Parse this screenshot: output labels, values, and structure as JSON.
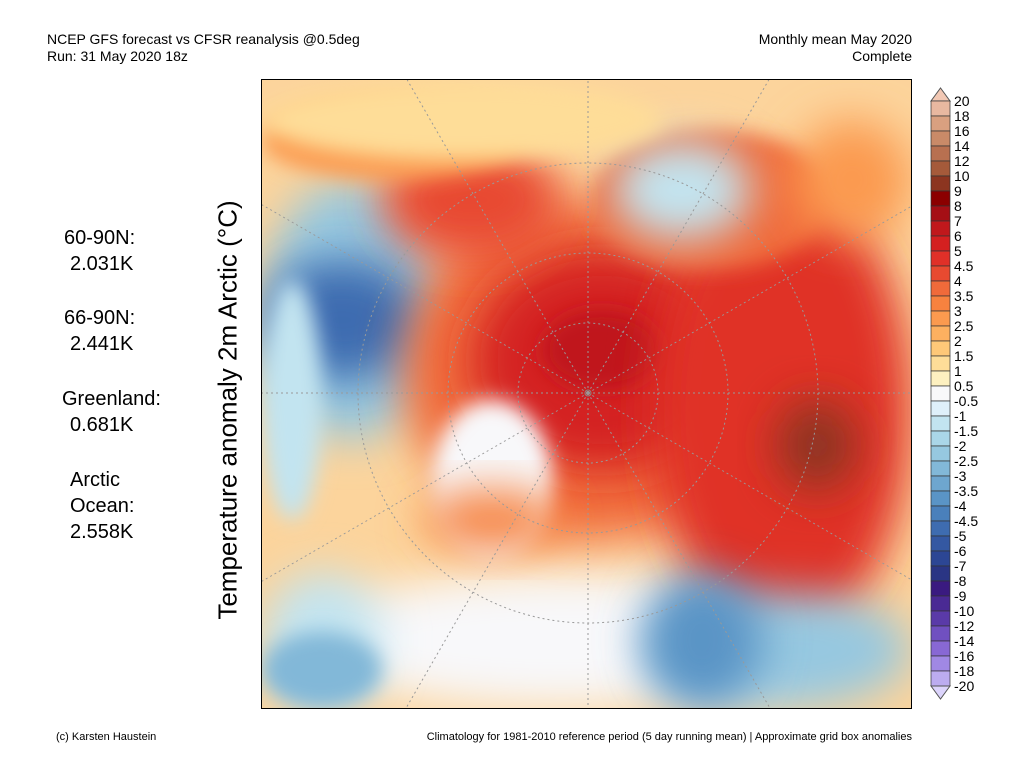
{
  "header": {
    "title_line1": "NCEP GFS forecast vs CFSR reanalysis @0.5deg",
    "title_line2": "Run: 31 May 2020 18z",
    "right_line1": "Monthly mean May 2020",
    "right_line2": "Complete"
  },
  "axis_label": "Temperature anomaly 2m Arctic (°C)",
  "stats": [
    {
      "label": "60-90N:",
      "value": "2.031K"
    },
    {
      "label": "66-90N:",
      "value": "2.441K"
    },
    {
      "label": "Greenland:",
      "value": "0.681K"
    },
    {
      "label": "Arctic",
      "label2": "Ocean:",
      "value": "2.558K"
    }
  ],
  "colorbar": {
    "labels": [
      "20",
      "18",
      "16",
      "14",
      "12",
      "10",
      "9",
      "8",
      "7",
      "6",
      "5",
      "4.5",
      "4",
      "3.5",
      "3",
      "2.5",
      "2",
      "1.5",
      "1",
      "0.5",
      "-0.5",
      "-1",
      "-1.5",
      "-2",
      "-2.5",
      "-3",
      "-3.5",
      "-4",
      "-4.5",
      "-5",
      "-6",
      "-7",
      "-8",
      "-9",
      "-10",
      "-12",
      "-14",
      "-16",
      "-18",
      "-20"
    ],
    "top_triangle_color": "#f2c8b4",
    "bottom_triangle_color": "#dcd4fc",
    "colors": [
      "#e8b8a0",
      "#d9a080",
      "#c98a68",
      "#b87050",
      "#a55a3a",
      "#8c3520",
      "#8b0000",
      "#a50f15",
      "#c0181c",
      "#d42020",
      "#e03028",
      "#e84a30",
      "#f06a3a",
      "#f7823f",
      "#fb9a4f",
      "#fdb060",
      "#fec878",
      "#fedd98",
      "#fdf0c0",
      "#f8f8fa",
      "#dff0fa",
      "#c2e4f0",
      "#aad6e8",
      "#96c8e0",
      "#82b8d8",
      "#6ea6cf",
      "#5a94c6",
      "#4a80bb",
      "#3e6cb0",
      "#3458a2",
      "#2c4694",
      "#2a3584",
      "#3a1a80",
      "#4a2a94",
      "#5a3aa8",
      "#7050c0",
      "#8868d4",
      "#a088e4",
      "#bcacf0"
    ]
  },
  "map": {
    "base_color": "#fcd49c",
    "accent_warm": "#d42020",
    "accent_cold": "#4a80bb"
  },
  "footer": {
    "left": "(c) Karsten Haustein",
    "right": "Climatology for 1981-2010 reference period (5 day running mean) | Approximate grid box anomalies"
  }
}
